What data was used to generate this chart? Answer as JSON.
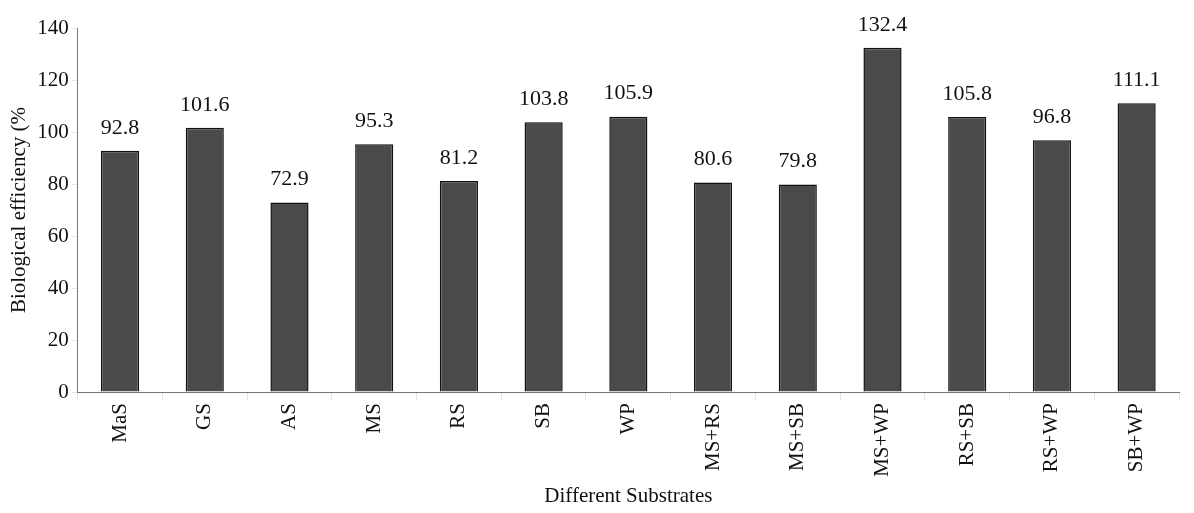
{
  "chart_data": {
    "type": "bar",
    "xlabel": "Different Substrates",
    "ylabel": "Biological efficiency (%",
    "categories": [
      "MaS",
      "GS",
      "AS",
      "MS",
      "RS",
      "SB",
      "WP",
      "MS+RS",
      "MS+SB",
      "MS+WP",
      "RS+SB",
      "RS+WP",
      "SB+WP"
    ],
    "values": [
      92.8,
      101.6,
      72.9,
      95.3,
      81.2,
      103.8,
      105.9,
      80.6,
      79.8,
      132.4,
      105.8,
      96.8,
      111.1
    ],
    "color": "#4a4a4a",
    "ylim": [
      0,
      140
    ],
    "yticks": [
      0,
      20,
      40,
      60,
      80,
      100,
      120,
      140
    ],
    "grid": false,
    "legend": false,
    "data_labels": true
  }
}
